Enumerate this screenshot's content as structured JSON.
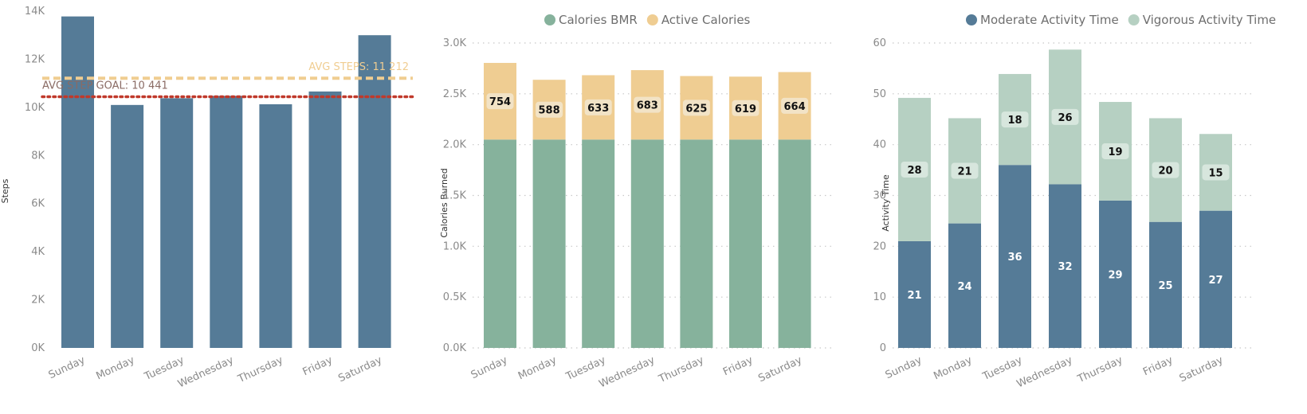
{
  "colors": {
    "steps_bar": "#557b97",
    "avg_steps_line": "#f0cd91",
    "step_goal_line": "#c0392b",
    "bmr": "#86b29c",
    "active": "#efcd92",
    "moderate": "#557b97",
    "vigorous": "#b6d0c2",
    "grid": "#c8c8c8",
    "tick_text": "#8a8a8a",
    "label_box": "#f2e3c6",
    "label_box_green": "#d7e6dd"
  },
  "chart_data": [
    {
      "type": "bar",
      "categories": [
        "Sunday",
        "Monday",
        "Tuesday",
        "Wednesday",
        "Thursday",
        "Friday",
        "Saturday"
      ],
      "values": [
        13780,
        10100,
        10380,
        10480,
        10130,
        10660,
        13000
      ],
      "ylabel": "Steps",
      "yticks": [
        "0K",
        "2K",
        "4K",
        "6K",
        "8K",
        "10K",
        "12K",
        "14K"
      ],
      "ylim": [
        0,
        14000
      ],
      "grid": false,
      "reference_lines": [
        {
          "name": "avg_steps",
          "label": "AVG STEPS: 11 212",
          "value": 11212,
          "style": "dashed"
        },
        {
          "name": "step_goal",
          "label": "AVG STEP GOAL: 10 441",
          "value": 10441,
          "style": "dotted"
        }
      ]
    },
    {
      "type": "bar",
      "stacked": true,
      "categories": [
        "Sunday",
        "Monday",
        "Tuesday",
        "Wednesday",
        "Thursday",
        "Friday",
        "Saturday"
      ],
      "series": [
        {
          "name": "Calories BMR",
          "values": [
            2050,
            2050,
            2050,
            2050,
            2050,
            2050,
            2050
          ]
        },
        {
          "name": "Active Calories",
          "values": [
            754,
            588,
            633,
            683,
            625,
            619,
            664
          ],
          "labels": [
            "754",
            "588",
            "633",
            "683",
            "625",
            "619",
            "664"
          ]
        }
      ],
      "ylabel": "Calories Burned",
      "yticks": [
        "0.0K",
        "0.5K",
        "1.0K",
        "1.5K",
        "2.0K",
        "2.5K",
        "3.0K"
      ],
      "ylim": [
        0,
        3000
      ],
      "grid": true,
      "legend": "top-center"
    },
    {
      "type": "bar",
      "stacked": true,
      "categories": [
        "Sunday",
        "Monday",
        "Tuesday",
        "Wednesday",
        "Thursday",
        "Friday",
        "Saturday"
      ],
      "series": [
        {
          "name": "Moderate Activity Time",
          "values": [
            21,
            24.5,
            36,
            32.2,
            29,
            24.8,
            27
          ],
          "labels": [
            "21",
            "24",
            "36",
            "32",
            "29",
            "25",
            "27"
          ]
        },
        {
          "name": "Vigorous Activity Time",
          "values": [
            28.2,
            20.7,
            17.9,
            26.5,
            19.4,
            20.4,
            15.1
          ],
          "labels": [
            "28",
            "21",
            "18",
            "26",
            "19",
            "20",
            "15"
          ]
        }
      ],
      "ylabel": "Activity Time",
      "yticks": [
        "0",
        "10",
        "20",
        "30",
        "40",
        "50",
        "60"
      ],
      "ylim": [
        0,
        60
      ],
      "grid": true,
      "legend": "top-center"
    }
  ]
}
